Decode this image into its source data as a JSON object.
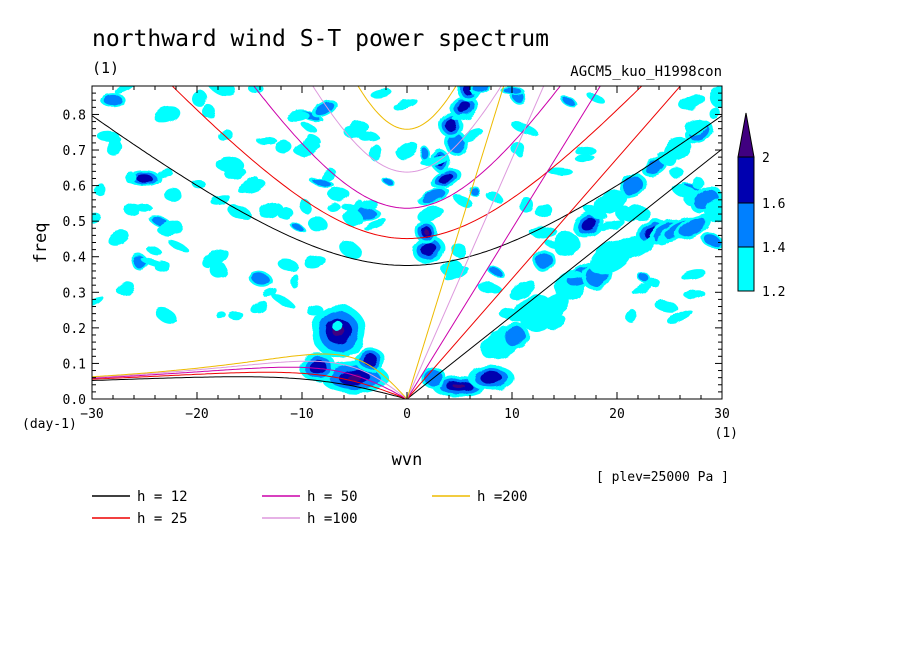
{
  "chart_data": {
    "type": "heatmap",
    "title": "northward wind S-T power spectrum",
    "unit_label": "(1)",
    "model": "AGCM5_kuo_H1998con",
    "xlabel": "wvn",
    "x_unit": "(1)",
    "ylabel": "freq",
    "y_unit": "(day-1)",
    "level_note": "[ plev=25000 Pa ]",
    "xlim": [
      -30,
      30
    ],
    "ylim": [
      0,
      0.88
    ],
    "x_ticks": [
      -30,
      -20,
      -10,
      0,
      10,
      20,
      30
    ],
    "y_ticks": [
      0.0,
      0.1,
      0.2,
      0.3,
      0.4,
      0.5,
      0.6,
      0.7,
      0.8
    ],
    "colorbar": {
      "levels": [
        1.2,
        1.4,
        1.6,
        2
      ],
      "colors": [
        "#00ffff",
        "#0080ff",
        "#0000b0",
        "#400080"
      ],
      "extend": "max"
    },
    "dispersion_curves": [
      {
        "label": "h = 12",
        "h": 12,
        "color": "#000000"
      },
      {
        "label": "h = 25",
        "h": 25,
        "color": "#ee0000"
      },
      {
        "label": "h = 50",
        "h": 50,
        "color": "#cc00aa"
      },
      {
        "label": "h =100",
        "h": 100,
        "color": "#dd99dd"
      },
      {
        "label": "h =200",
        "h": 200,
        "color": "#eebb00"
      }
    ],
    "spectral_peaks": [
      {
        "x": -7,
        "y": 0.2,
        "level": 2
      },
      {
        "x": -5,
        "y": 0.05,
        "level": 2
      },
      {
        "x": -7,
        "y": 0.1,
        "level": 1.6
      },
      {
        "x": -4,
        "y": 0.15,
        "level": 1.6
      },
      {
        "x": 5,
        "y": 0.04,
        "level": 1.6
      },
      {
        "x": 8,
        "y": 0.07,
        "level": 1.6
      },
      {
        "x": 3,
        "y": 0.77,
        "level": 2
      },
      {
        "x": 4,
        "y": 0.67,
        "level": 1.6
      },
      {
        "x": 5,
        "y": 0.55,
        "level": 1.6
      },
      {
        "x": 10,
        "y": 0.22,
        "level": 1.6
      },
      {
        "x": 12,
        "y": 0.33,
        "level": 1.4
      },
      {
        "x": 17,
        "y": 0.55,
        "level": 1.6
      },
      {
        "x": 23,
        "y": 0.6,
        "level": 1.6
      },
      {
        "x": 28,
        "y": 0.72,
        "level": 1.6
      },
      {
        "x": -25,
        "y": 0.62,
        "level": 1.6
      },
      {
        "x": -4,
        "y": 0.53,
        "level": 1.4
      }
    ]
  }
}
